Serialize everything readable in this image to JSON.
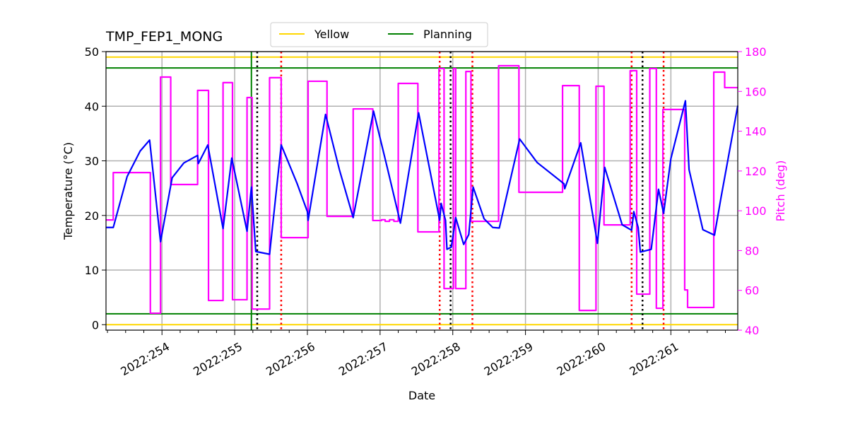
{
  "chart_data": {
    "type": "line",
    "title": "TMP_FEP1_MONG",
    "xlabel": "Date",
    "ylabel": "Temperature ($^\\circ$C)",
    "ylabel_display": "Temperature (°C)",
    "y2label": "Pitch (deg)",
    "xlim": [
      253.23,
      261.92
    ],
    "ylim": [
      -1,
      50
    ],
    "y2lim": [
      40,
      180
    ],
    "grid": true,
    "legend_placement": "top-center",
    "x_ticks": [
      254,
      255,
      256,
      257,
      258,
      259,
      260,
      261
    ],
    "x_tick_labels": [
      "2022:254",
      "2022:255",
      "2022:256",
      "2022:257",
      "2022:258",
      "2022:259",
      "2022:260",
      "2022:261"
    ],
    "y_ticks": [
      0,
      10,
      20,
      30,
      40,
      50
    ],
    "y_tick_labels": [
      "0",
      "10",
      "20",
      "30",
      "40",
      "50"
    ],
    "y2_ticks": [
      40,
      60,
      80,
      100,
      120,
      140,
      160,
      180
    ],
    "y2_tick_labels": [
      "40",
      "60",
      "80",
      "100",
      "120",
      "140",
      "160",
      "180"
    ],
    "legend": [
      {
        "name": "Yellow",
        "color": "#ffd700"
      },
      {
        "name": "Planning",
        "color": "#008000"
      }
    ],
    "limits": [
      {
        "name": "Yellow",
        "values": [
          49,
          0
        ],
        "color": "#ffd700"
      },
      {
        "name": "Planning",
        "values": [
          47,
          2
        ],
        "color": "#008000"
      }
    ],
    "vlines": [
      {
        "x": 255.23,
        "color": "#008000",
        "style": "solid"
      },
      {
        "x": 255.31,
        "color": "#000000",
        "style": "dotted"
      },
      {
        "x": 257.97,
        "color": "#000000",
        "style": "dotted"
      },
      {
        "x": 260.61,
        "color": "#000000",
        "style": "dotted"
      },
      {
        "x": 255.64,
        "color": "#ff0000",
        "style": "dotted"
      },
      {
        "x": 257.82,
        "color": "#ff0000",
        "style": "dotted"
      },
      {
        "x": 258.27,
        "color": "#ff0000",
        "style": "dotted"
      },
      {
        "x": 260.46,
        "color": "#ff0000",
        "style": "dotted"
      },
      {
        "x": 260.9,
        "color": "#ff0000",
        "style": "dotted"
      }
    ],
    "series": [
      {
        "axis": "left",
        "color": "#0000ff",
        "x": [
          253.23,
          253.33,
          253.52,
          253.7,
          253.83,
          253.98,
          254.14,
          254.3,
          254.49,
          254.5,
          254.63,
          254.84,
          254.96,
          255.17,
          255.23,
          255.29,
          255.48,
          255.64,
          255.86,
          256.0,
          256.01,
          256.25,
          256.44,
          256.63,
          256.91,
          257.1,
          257.28,
          257.53,
          257.82,
          257.84,
          257.9,
          257.92,
          257.98,
          258.04,
          258.15,
          258.22,
          258.28,
          258.43,
          258.55,
          258.64,
          258.92,
          259.16,
          259.53,
          259.54,
          259.76,
          259.99,
          260.09,
          260.33,
          260.46,
          260.49,
          260.55,
          260.58,
          260.73,
          260.83,
          260.9,
          261.0,
          261.2,
          261.25,
          261.44,
          261.6,
          261.69,
          261.92
        ],
        "y": [
          17.8,
          17.8,
          27.1,
          31.8,
          33.8,
          15.2,
          26.9,
          29.6,
          31.0,
          29.5,
          32.9,
          17.6,
          30.5,
          17.1,
          25.2,
          13.4,
          12.9,
          32.9,
          25.8,
          20.7,
          19.1,
          38.5,
          28.4,
          19.6,
          39.1,
          28.7,
          18.6,
          38.8,
          19.1,
          22.2,
          19.1,
          13.8,
          14.2,
          19.6,
          14.7,
          16.5,
          25.2,
          19.4,
          17.8,
          17.7,
          34.0,
          29.7,
          25.8,
          24.9,
          33.3,
          14.9,
          28.8,
          18.3,
          17.3,
          20.7,
          17.8,
          13.3,
          13.8,
          24.8,
          20.4,
          30.4,
          41.0,
          28.4,
          17.4,
          16.4,
          23.3,
          40.1
        ]
      },
      {
        "axis": "right",
        "color": "#ff00ff",
        "step": true,
        "x": [
          253.23,
          253.33,
          253.84,
          253.98,
          254.12,
          254.49,
          254.64,
          254.84,
          254.97,
          255.17,
          255.24,
          255.48,
          255.64,
          256.01,
          256.27,
          256.63,
          256.9,
          257.02,
          257.07,
          257.13,
          257.19,
          257.25,
          257.52,
          257.81,
          257.88,
          258.01,
          258.04,
          258.18,
          258.25,
          258.63,
          258.91,
          259.51,
          259.74,
          259.97,
          260.08,
          260.44,
          260.53,
          260.71,
          260.8,
          260.89,
          261.19,
          261.23,
          261.59,
          261.74,
          261.92
        ],
        "y": [
          95.4,
          119.2,
          48.5,
          167.2,
          113.2,
          160.5,
          54.9,
          164.4,
          55.3,
          156.9,
          50.6,
          166.9,
          86.5,
          165.1,
          97.2,
          151.2,
          95.1,
          95.5,
          94.7,
          95.5,
          94.7,
          164.0,
          89.4,
          171.5,
          60.9,
          171.5,
          60.9,
          170.0,
          94.7,
          172.9,
          109.3,
          162.9,
          49.9,
          162.6,
          92.9,
          170.4,
          58.1,
          171.5,
          51.0,
          150.9,
          60.2,
          51.4,
          169.7,
          161.9,
          161.9
        ]
      }
    ]
  }
}
